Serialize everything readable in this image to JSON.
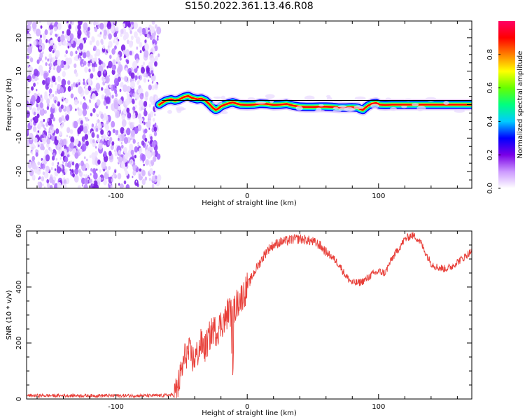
{
  "title": "S150.2022.361.13.46.R08",
  "chart_data": [
    {
      "type": "heatmap",
      "name": "spectrogram",
      "xlabel": "Height of straight line (km)",
      "ylabel": "Frequency (Hz)",
      "xlim": [
        -168,
        171
      ],
      "ylim": [
        -25,
        25
      ],
      "xticks": [
        -100,
        0,
        100
      ],
      "yticks": [
        -20,
        -10,
        0,
        10,
        20
      ],
      "noise_region_x": [
        -168,
        -67
      ],
      "ridge": {
        "x": [
          -67,
          -65,
          -62,
          -58,
          -55,
          -52,
          -48,
          -45,
          -42,
          -38,
          -35,
          -32,
          -29,
          -26,
          -24,
          -22,
          -20,
          -17,
          -14,
          -11,
          -8,
          -5,
          0,
          5,
          10,
          15,
          20,
          25,
          30,
          35,
          40,
          45,
          50,
          55,
          60,
          65,
          70,
          75,
          80,
          84,
          86,
          88,
          90,
          92,
          95,
          98,
          101,
          105,
          110,
          120,
          130,
          140,
          150,
          160,
          171
        ],
        "y": [
          0.0,
          0.5,
          1.2,
          1.6,
          1.2,
          1.5,
          2.3,
          2.6,
          2.0,
          1.6,
          1.8,
          1.3,
          0.2,
          -1.0,
          -1.6,
          -1.2,
          -0.5,
          0.0,
          0.4,
          0.7,
          0.3,
          0.0,
          -0.1,
          0.0,
          0.3,
          0.2,
          -0.1,
          0.0,
          0.2,
          -0.3,
          -0.6,
          -0.7,
          -0.7,
          -0.6,
          -0.6,
          -0.7,
          -0.9,
          -0.9,
          -0.8,
          -0.9,
          -1.3,
          -1.6,
          -0.9,
          -0.3,
          0.3,
          0.5,
          0.0,
          -0.1,
          0.0,
          0.0,
          0.0,
          0.0,
          0.0,
          0.0,
          0.0
        ]
      },
      "colorbar": {
        "label": "Normalized spectral amplitude",
        "range": [
          0,
          1
        ],
        "ticks": [
          "0.0",
          "0.2",
          "0.4",
          "0.6",
          "0.8"
        ],
        "colors": [
          "#ffffff",
          "#cc99ff",
          "#7a00e6",
          "#0000ff",
          "#00ccff",
          "#00ff80",
          "#66ff00",
          "#ffff00",
          "#ff8000",
          "#ff0000",
          "#ff0066"
        ]
      },
      "line_color": "#000000"
    },
    {
      "type": "line",
      "name": "snr",
      "xlabel": "Height of straight line (km)",
      "ylabel": "SNR (10 * v/v)",
      "xlim": [
        -168,
        171
      ],
      "ylim": [
        0,
        600
      ],
      "xticks": [
        -100,
        0,
        100
      ],
      "yticks": [
        0,
        200,
        400,
        600
      ],
      "color": "#e8403a",
      "x": [
        -168,
        -150,
        -120,
        -90,
        -65,
        -56,
        -53,
        -50,
        -47,
        -44,
        -41,
        -38,
        -35,
        -32,
        -29,
        -26,
        -23,
        -20,
        -17,
        -14,
        -11,
        -8,
        -5,
        -2,
        0,
        5,
        10,
        15,
        20,
        25,
        30,
        35,
        40,
        45,
        50,
        55,
        60,
        65,
        70,
        75,
        80,
        85,
        90,
        95,
        100,
        105,
        110,
        115,
        120,
        125,
        128,
        132,
        136,
        140,
        145,
        150,
        155,
        160,
        165,
        171
      ],
      "y": [
        12,
        12,
        12,
        12,
        12,
        15,
        40,
        100,
        160,
        165,
        140,
        160,
        200,
        180,
        220,
        250,
        240,
        270,
        280,
        320,
        300,
        340,
        360,
        380,
        400,
        450,
        490,
        530,
        550,
        560,
        565,
        570,
        572,
        568,
        562,
        550,
        525,
        505,
        480,
        440,
        415,
        415,
        425,
        445,
        455,
        450,
        500,
        535,
        570,
        585,
        580,
        560,
        520,
        485,
        470,
        465,
        470,
        490,
        505,
        530
      ]
    }
  ]
}
